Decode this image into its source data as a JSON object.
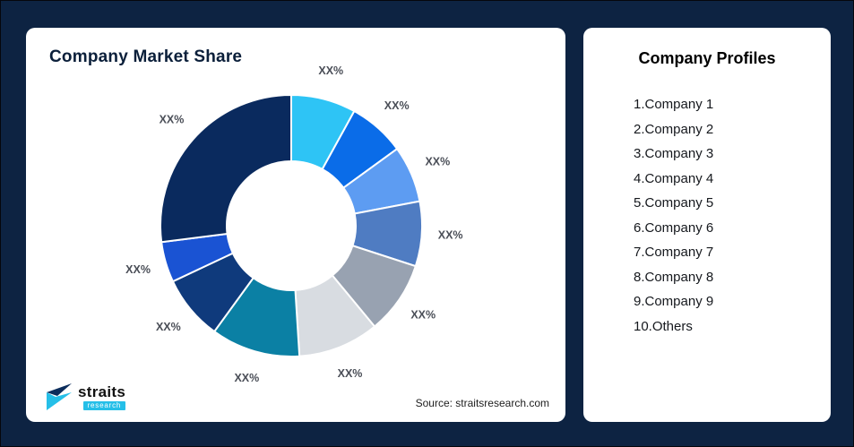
{
  "frame": {
    "background": "#0D2342"
  },
  "left_card": {
    "title": "Company Market Share",
    "source": "Source: straitsresearch.com"
  },
  "logo": {
    "name": "straits",
    "sub": "research",
    "accent_color": "#25BFE8",
    "dark_color": "#0C2D5C"
  },
  "right_card": {
    "title": "Company Profiles",
    "items": [
      "1.Company 1",
      "2.Company 2",
      "3.Company 3",
      "4.Company 4",
      "5.Company 5",
      "6.Company 6",
      "7.Company 7",
      "8.Company 8",
      "9.Company 9",
      "10.Others"
    ]
  },
  "chart_data": {
    "type": "pie",
    "variant": "donut",
    "title": "Company Market Share",
    "legend_position": "none",
    "labels": [
      "Company 1",
      "Company 2",
      "Company 3",
      "Company 4",
      "Company 5",
      "Company 6",
      "Company 7",
      "Company 8",
      "Company 9",
      "Others"
    ],
    "display_labels": [
      "XX%",
      "XX%",
      "XX%",
      "XX%",
      "XX%",
      "XX%",
      "XX%",
      "XX%",
      "XX%",
      "XX%"
    ],
    "values": [
      8,
      7,
      7,
      8,
      9,
      10,
      11,
      8,
      5,
      27
    ],
    "colors": [
      "#2EC4F5",
      "#0A6CE8",
      "#5D9CF2",
      "#4F7CC2",
      "#98A2B1",
      "#D8DCE1",
      "#0B80A4",
      "#0F3A7C",
      "#1A53D3",
      "#0A2A5E"
    ]
  }
}
